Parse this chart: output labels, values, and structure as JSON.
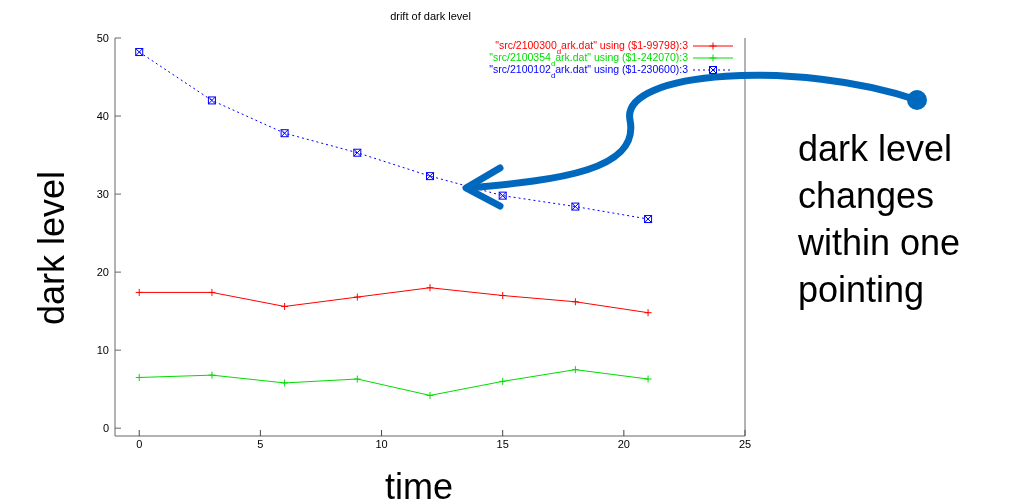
{
  "chart_data": {
    "type": "line",
    "title": "drift of dark level",
    "xlabel": "time",
    "ylabel": "dark level",
    "x": [
      0,
      3,
      6,
      9,
      12,
      15,
      18,
      21
    ],
    "series": [
      {
        "name": "\"src/2100300$_{d}$ark.dat\" using ($1-99798):3",
        "color": "#ff0000",
        "marker": "cross",
        "line_style": "solid",
        "values": [
          17.4,
          17.4,
          15.6,
          16.8,
          18,
          17,
          16.2,
          14.8
        ]
      },
      {
        "name": "\"src/2100354$_{d}$ark.dat\" using ($1-242070):3",
        "color": "#00dd00",
        "marker": "cross",
        "line_style": "solid",
        "values": [
          6.5,
          6.8,
          5.8,
          6.3,
          4.2,
          6,
          7.5,
          6.3
        ]
      },
      {
        "name": "\"src/2100102$_{d}$ark.dat\" using ($1-230600):3",
        "color": "#0000ff",
        "marker": "square",
        "line_style": "dotted",
        "values": [
          48.2,
          42,
          37.8,
          35.3,
          32.3,
          29.8,
          28.4,
          26.8
        ]
      }
    ],
    "xlim": [
      -1,
      25
    ],
    "xticks": [
      0,
      5,
      10,
      15,
      20,
      25
    ],
    "ylim": [
      -1,
      50
    ],
    "yticks": [
      0,
      10,
      20,
      30,
      40,
      50
    ],
    "legend": "top right",
    "annotations": [
      "dark level changes within one pointing"
    ]
  }
}
